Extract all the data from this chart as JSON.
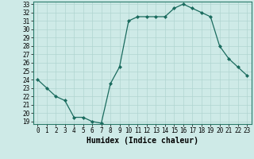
{
  "x": [
    0,
    1,
    2,
    3,
    4,
    5,
    6,
    7,
    8,
    9,
    10,
    11,
    12,
    13,
    14,
    15,
    16,
    17,
    18,
    19,
    20,
    21,
    22,
    23
  ],
  "y": [
    24.0,
    23.0,
    22.0,
    21.5,
    19.5,
    19.5,
    19.0,
    18.8,
    23.5,
    25.5,
    31.0,
    31.5,
    31.5,
    31.5,
    31.5,
    32.5,
    33.0,
    32.5,
    32.0,
    31.5,
    28.0,
    26.5,
    25.5,
    24.5
  ],
  "line_color": "#1a6b5e",
  "marker": "D",
  "marker_size": 2.0,
  "background_color": "#ceeae7",
  "grid_color": "#b0d5d1",
  "xlabel": "Humidex (Indice chaleur)",
  "ylim": [
    19,
    33
  ],
  "xlim": [
    -0.5,
    23.5
  ],
  "yticks": [
    19,
    20,
    21,
    22,
    23,
    24,
    25,
    26,
    27,
    28,
    29,
    30,
    31,
    32,
    33
  ],
  "xticks": [
    0,
    1,
    2,
    3,
    4,
    5,
    6,
    7,
    8,
    9,
    10,
    11,
    12,
    13,
    14,
    15,
    16,
    17,
    18,
    19,
    20,
    21,
    22,
    23
  ],
  "xlabel_fontsize": 7,
  "tick_fontsize": 5.5,
  "spine_color": "#2a7a6a",
  "linewidth": 0.9
}
